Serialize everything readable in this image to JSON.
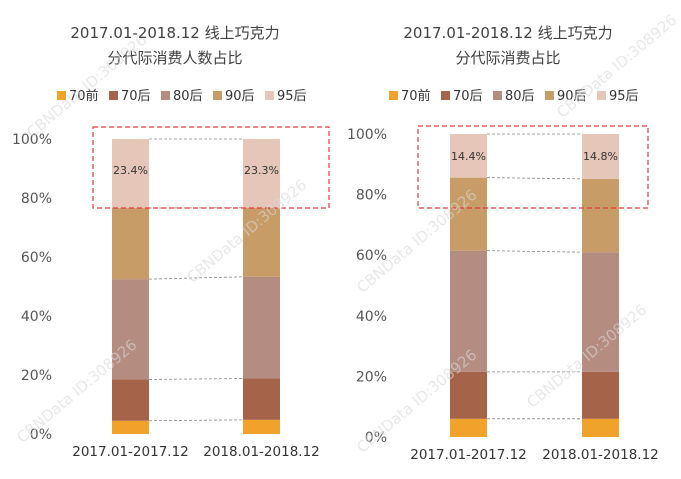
{
  "charts": [
    {
      "title_line1": "2017.01-2018.12 线上巧克力",
      "title_line2": "分代际消费人数占比",
      "watermark": "CBNData ID:308926",
      "highlight_labels": [
        "23.4%",
        "23.3%"
      ]
    },
    {
      "title_line1": "2017.01-2018.12 线上巧克力",
      "title_line2": "分代际消费占比",
      "watermark": "CBNData ID:308926",
      "highlight_labels": [
        "14.4%",
        "14.8%"
      ]
    }
  ],
  "colors": {
    "70前": "#f0a22b",
    "70后": "#a5644a",
    "80后": "#b58d80",
    "90后": "#c79c67",
    "95后": "#e6c6b8",
    "highlight_box": "#e33b3b",
    "connector": "#888888"
  },
  "chart_data": [
    {
      "type": "bar",
      "stacked": true,
      "title": "2017.01-2018.12 线上巧克力 分代际消费人数占比",
      "categories": [
        "2017.01-2017.12",
        "2018.01-2018.12"
      ],
      "series": [
        {
          "name": "70前",
          "values": [
            4.5,
            4.8
          ]
        },
        {
          "name": "70后",
          "values": [
            14.0,
            14.0
          ]
        },
        {
          "name": "80后",
          "values": [
            34.0,
            34.5
          ]
        },
        {
          "name": "90后",
          "values": [
            24.1,
            23.4
          ]
        },
        {
          "name": "95后",
          "values": [
            23.4,
            23.3
          ]
        }
      ],
      "yticks": [
        "0%",
        "20%",
        "40%",
        "60%",
        "80%",
        "100%"
      ],
      "ylim": [
        0,
        100
      ],
      "legend": "top"
    },
    {
      "type": "bar",
      "stacked": true,
      "title": "2017.01-2018.12 线上巧克力 分代际消费占比",
      "categories": [
        "2017.01-2017.12",
        "2018.01-2018.12"
      ],
      "series": [
        {
          "name": "70前",
          "values": [
            6.0,
            6.0
          ]
        },
        {
          "name": "70后",
          "values": [
            15.5,
            15.5
          ]
        },
        {
          "name": "80后",
          "values": [
            40.0,
            39.5
          ]
        },
        {
          "name": "90后",
          "values": [
            24.1,
            24.2
          ]
        },
        {
          "name": "95后",
          "values": [
            14.4,
            14.8
          ]
        }
      ],
      "yticks": [
        "0%",
        "20%",
        "40%",
        "60%",
        "80%",
        "100%"
      ],
      "ylim": [
        0,
        100
      ],
      "legend": "top"
    }
  ]
}
